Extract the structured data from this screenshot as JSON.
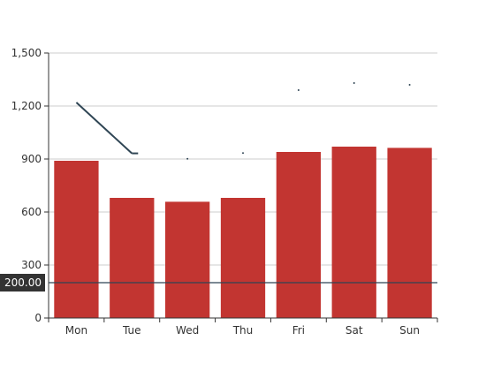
{
  "chart_data": {
    "type": "bar",
    "categories": [
      "Mon",
      "Tue",
      "Wed",
      "Thu",
      "Fri",
      "Sat",
      "Sun"
    ],
    "ylim": [
      0,
      1500
    ],
    "y_ticks": [
      0,
      300,
      600,
      900,
      1200,
      1500
    ],
    "y_tick_labels": [
      "0",
      "300",
      "600",
      "900",
      "1,200",
      "1,500"
    ],
    "grid": true,
    "series": [
      {
        "type": "bar",
        "values": [
          890,
          680,
          658,
          680,
          940,
          970,
          963
        ],
        "color": "#c23531"
      },
      {
        "type": "line",
        "values": [
          1220,
          932,
          901,
          934,
          1290,
          1330,
          1320
        ],
        "color": "#2f4554"
      }
    ],
    "reference_line": {
      "value": 200,
      "label": "200.00",
      "color": "#2f4554"
    }
  }
}
